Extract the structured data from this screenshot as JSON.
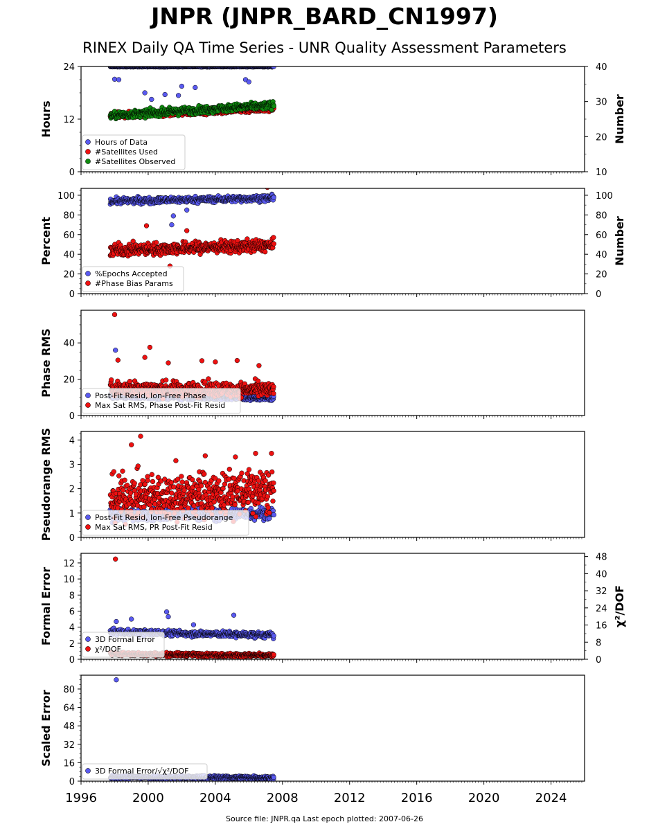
{
  "page": {
    "title": "JNPR (JNPR_BARD_CN1997)",
    "subtitle": "RINEX Daily QA Time Series - UNR Quality Assessment Parameters",
    "footer": "Source file: JNPR.qa Last epoch plotted: 2007-06-26"
  },
  "colors": {
    "blue": "#5a5af0",
    "red": "#ee1111",
    "green": "#0f8a0f",
    "edge": "#000000"
  },
  "chart_data": [
    {
      "type": "scatter",
      "ylabel": "Hours",
      "ylabel_right": "Number",
      "ylim": [
        0,
        24
      ],
      "yticks": [
        0,
        12,
        24
      ],
      "ylim_right": [
        10,
        40
      ],
      "yticks_right": [
        10,
        20,
        30,
        40
      ],
      "xlim": [
        1996,
        2026
      ],
      "legend": [
        "Hours of Data",
        "#Satellites Used",
        "#Satellites Observed"
      ],
      "legend_position": "lower-left",
      "series": [
        {
          "name": "Hours of Data",
          "axis": "left",
          "color": "blue",
          "x_range": [
            1997.75,
            2007.48
          ],
          "base": 24,
          "spread": 0.05,
          "outliers": [
            [
              1998.0,
              21.1
            ],
            [
              1998.25,
              21.0
            ],
            [
              1999.8,
              18.0
            ],
            [
              2001.0,
              17.6
            ],
            [
              2002.0,
              19.5
            ],
            [
              2002.8,
              19.2
            ],
            [
              2000.2,
              16.5
            ],
            [
              2001.8,
              17.4
            ],
            [
              2005.8,
              21.0
            ],
            [
              2006.0,
              20.5
            ]
          ]
        },
        {
          "name": "#Satellites Used",
          "axis": "right",
          "color": "red",
          "x_range": [
            1997.75,
            2007.48
          ],
          "base_start": 26.0,
          "base_end": 28.0,
          "spread": 0.8
        },
        {
          "name": "#Satellites Observed",
          "axis": "right",
          "color": "green",
          "x_range": [
            1997.75,
            2007.48
          ],
          "base_start": 26.0,
          "base_end": 29.0,
          "spread": 1.0
        }
      ]
    },
    {
      "type": "scatter",
      "ylabel": "Percent",
      "ylabel_right": "Number",
      "ylim": [
        0,
        107
      ],
      "yticks": [
        0,
        20,
        40,
        60,
        80,
        100
      ],
      "ylim_right": [
        0,
        107
      ],
      "yticks_right": [
        0,
        20,
        40,
        60,
        80,
        100
      ],
      "xlim": [
        1996,
        2026
      ],
      "legend": [
        "%Epochs Accepted",
        "#Phase Bias Params"
      ],
      "legend_position": "lower-left",
      "series": [
        {
          "name": "%Epochs Accepted",
          "axis": "left",
          "color": "blue",
          "x_range": [
            1997.75,
            2007.48
          ],
          "base_start": 94,
          "base_end": 97,
          "spread": 3,
          "outliers": [
            [
              2001.5,
              79
            ],
            [
              2001.4,
              70
            ],
            [
              2002.3,
              85
            ]
          ]
        },
        {
          "name": "#Phase Bias Params",
          "axis": "right",
          "color": "red",
          "x_range": [
            1997.75,
            2007.48
          ],
          "base_start": 44,
          "base_end": 49,
          "spread": 6,
          "outliers": [
            [
              2001.3,
              28
            ],
            [
              2002.3,
              64
            ],
            [
              1999.9,
              69
            ],
            [
              2007.1,
              108
            ]
          ]
        }
      ]
    },
    {
      "type": "scatter",
      "ylabel": "Phase RMS",
      "ylim": [
        0,
        58
      ],
      "yticks": [
        0,
        20,
        40
      ],
      "xlim": [
        1996,
        2026
      ],
      "legend": [
        "Post-Fit Resid, Ion-Free Phase",
        "Max Sat RMS, Phase Post-Fit Resid"
      ],
      "legend_position": "lower-left",
      "series": [
        {
          "name": "Post-Fit Resid, Ion-Free Phase",
          "axis": "left",
          "color": "blue",
          "x_range": [
            1997.75,
            2007.48
          ],
          "base_start": 10.5,
          "base_end": 9.5,
          "spread": 1.2,
          "outliers": [
            [
              1998.05,
              36
            ]
          ]
        },
        {
          "name": "Max Sat RMS, Phase Post-Fit Resid",
          "axis": "left",
          "color": "red",
          "x_range": [
            1997.75,
            2007.48
          ],
          "base_start": 15,
          "base_end": 14,
          "spread": 4,
          "outliers": [
            [
              1998.0,
              55.6
            ],
            [
              2000.1,
              37.6
            ],
            [
              1999.8,
              32
            ],
            [
              1998.2,
              30.5
            ],
            [
              2003.2,
              30.2
            ],
            [
              2005.3,
              30.3
            ],
            [
              2004.0,
              29.5
            ],
            [
              2006.6,
              27.5
            ],
            [
              2001.2,
              29
            ]
          ]
        }
      ]
    },
    {
      "type": "scatter",
      "ylabel": "Pseudorange RMS",
      "ylim": [
        0,
        4.35
      ],
      "yticks": [
        0,
        1,
        2,
        3,
        4
      ],
      "xlim": [
        1996,
        2026
      ],
      "legend": [
        "Post-Fit Resid, Ion-Free Pseudorange",
        "Max Sat RMS, PR Post-Fit Resid"
      ],
      "legend_position": "lower-left",
      "series": [
        {
          "name": "Post-Fit Resid, Ion-Free Pseudorange",
          "axis": "left",
          "color": "blue",
          "x_range": [
            1997.75,
            2007.48
          ],
          "base_start": 0.9,
          "base_end": 1.0,
          "spread": 0.25
        },
        {
          "name": "Max Sat RMS, PR Post-Fit Resid",
          "axis": "left",
          "color": "red",
          "x_range": [
            1997.75,
            2007.48
          ],
          "base_start": 1.6,
          "base_end": 1.9,
          "spread": 0.9,
          "outliers": [
            [
              1999.55,
              4.15
            ],
            [
              1999.0,
              3.8
            ],
            [
              2001.65,
              3.15
            ],
            [
              2003.4,
              3.35
            ],
            [
              2005.2,
              3.3
            ],
            [
              2006.4,
              3.45
            ],
            [
              2007.35,
              3.45
            ]
          ]
        }
      ]
    },
    {
      "type": "scatter",
      "ylabel": "Formal Error",
      "ylabel_right": "χ²/DOF",
      "ylim": [
        0,
        13.2
      ],
      "yticks": [
        0,
        2,
        4,
        6,
        8,
        10,
        12
      ],
      "ylim_right": [
        0,
        49.5
      ],
      "yticks_right": [
        0,
        8,
        16,
        24,
        32,
        40,
        48
      ],
      "xlim": [
        1996,
        2026
      ],
      "legend": [
        "3D Formal Error",
        "χ²/DOF"
      ],
      "legend_position": "lower-left",
      "series": [
        {
          "name": "3D Formal Error",
          "axis": "left",
          "color": "blue",
          "x_range": [
            1997.75,
            2007.48
          ],
          "base_start": 3.4,
          "base_end": 3.0,
          "spread": 0.35,
          "outliers": [
            [
              1998.1,
              4.7
            ],
            [
              1999.0,
              5.0
            ],
            [
              2001.1,
              5.9
            ],
            [
              2001.2,
              5.3
            ],
            [
              2002.7,
              4.3
            ],
            [
              2005.1,
              5.5
            ]
          ]
        },
        {
          "name": "χ²/DOF",
          "axis": "right",
          "color": "red",
          "x_range": [
            1997.75,
            2007.48
          ],
          "base_start": 2.5,
          "base_end": 1.8,
          "spread": 0.8,
          "outliers": [
            [
              1998.05,
              46.8
            ]
          ]
        }
      ]
    },
    {
      "type": "scatter",
      "ylabel": "Scaled Error",
      "ylim": [
        0,
        92
      ],
      "yticks": [
        0,
        16,
        32,
        48,
        64,
        80
      ],
      "xlim": [
        1996,
        2026
      ],
      "xticks": [
        1996,
        2000,
        2004,
        2008,
        2012,
        2016,
        2020,
        2024
      ],
      "legend": [
        "3D Formal Error/√χ²/DOF"
      ],
      "legend_position": "lower-left",
      "series": [
        {
          "name": "3D Formal Error/√χ²/DOF",
          "axis": "left",
          "color": "blue",
          "x_range": [
            1997.75,
            2007.48
          ],
          "base_start": 3.5,
          "base_end": 3.0,
          "spread": 1.6,
          "outliers": [
            [
              1998.1,
              88
            ]
          ]
        }
      ]
    }
  ]
}
